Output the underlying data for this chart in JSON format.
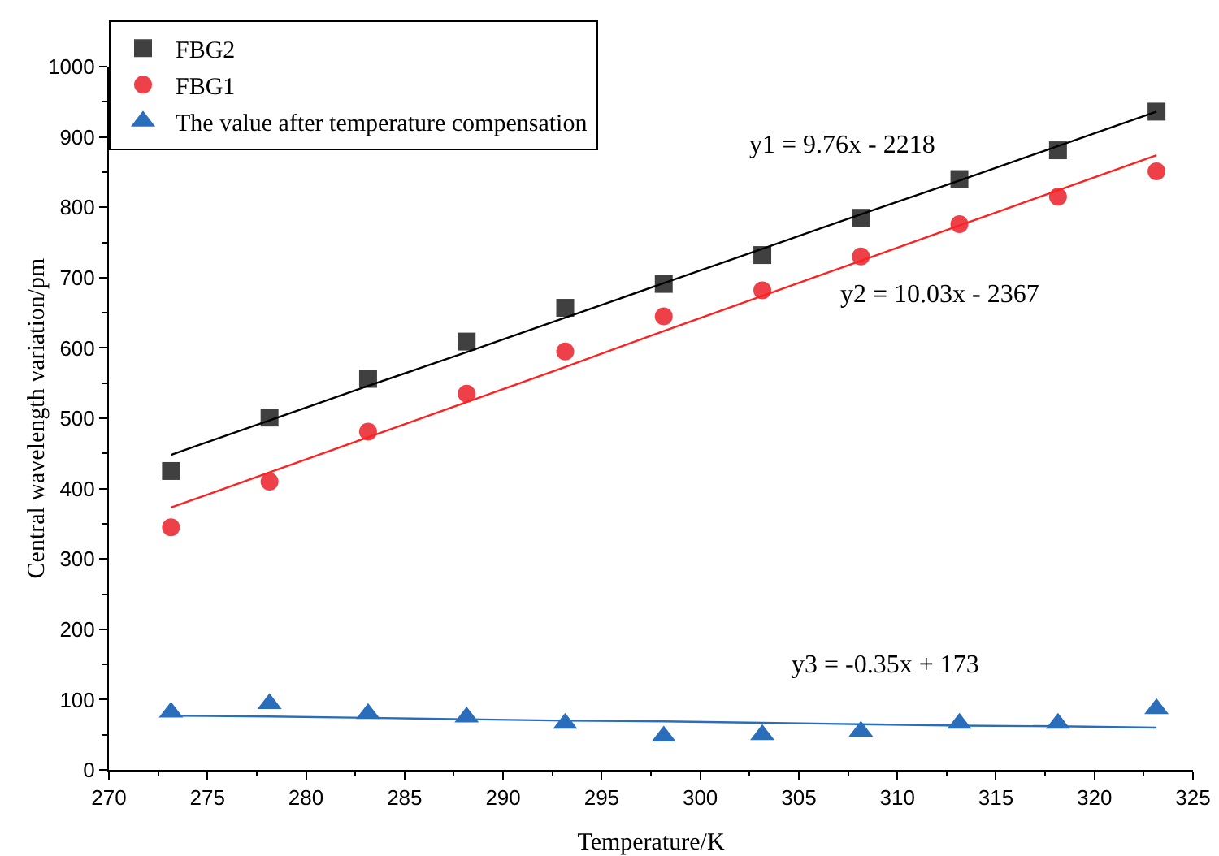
{
  "chart_data": {
    "type": "scatter",
    "xlabel": "Temperature/K",
    "ylabel": "Central wavelength variation/pm",
    "x": [
      273.15,
      278.15,
      283.15,
      288.15,
      293.15,
      298.15,
      303.15,
      308.15,
      313.15,
      318.15,
      323.15
    ],
    "series": [
      {
        "name": "FBG2",
        "color": "#404040",
        "marker": "square",
        "values": [
          425,
          501,
          556,
          609,
          657,
          691,
          732,
          785,
          840,
          881,
          936
        ]
      },
      {
        "name": "FBG1",
        "color": "#ee4048",
        "marker": "circle",
        "values": [
          345,
          410,
          481,
          535,
          595,
          645,
          682,
          730,
          776,
          815,
          851
        ]
      },
      {
        "name": "The value after temperature compensation",
        "color": "#2a6ebb",
        "marker": "triangle",
        "values": [
          82,
          94,
          80,
          75,
          66,
          48,
          50,
          55,
          66,
          66,
          87
        ]
      },
      {
        "type": "line",
        "color": "#000000",
        "marker": "none",
        "line_style": "solid",
        "values": [
          448,
          497,
          546,
          594,
          643,
          692,
          741,
          790,
          838,
          887,
          936
        ]
      },
      {
        "type": "line",
        "color": "#ff2020",
        "marker": "none",
        "line_style": "solid",
        "values": [
          373,
          423,
          473,
          523,
          573,
          624,
          674,
          724,
          774,
          824,
          874
        ]
      },
      {
        "type": "line",
        "color": "#2a6ebb",
        "marker": "none",
        "line_style": "solid",
        "values": [
          77,
          76,
          74,
          72,
          70,
          69,
          67,
          65,
          63,
          62,
          60
        ]
      }
    ],
    "xlim": [
      270,
      325
    ],
    "xticks": [
      270,
      275,
      280,
      285,
      290,
      295,
      300,
      305,
      310,
      315,
      320,
      325
    ],
    "ylim": [
      0,
      1000
    ],
    "yticks": [
      0,
      100,
      200,
      300,
      400,
      500,
      600,
      700,
      800,
      900,
      1000
    ],
    "grid": false,
    "legend": "top left",
    "annotations": [
      "y1 = 9.76x - 2218",
      "y2 = 10.03x - 2367",
      "y3 = -0.35x + 173"
    ]
  }
}
